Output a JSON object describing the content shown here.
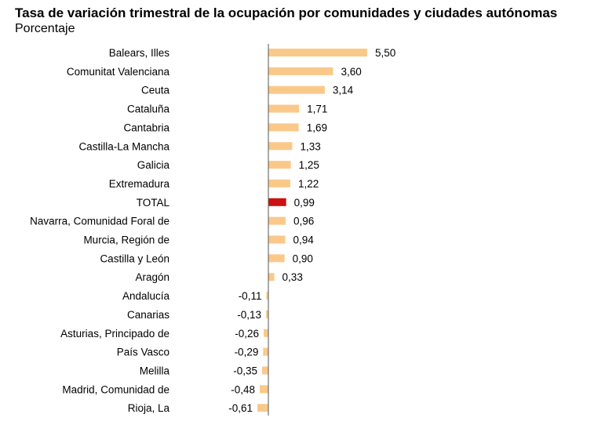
{
  "chart_data": {
    "type": "bar",
    "orientation": "horizontal",
    "title": "Tasa de variación trimestral de la ocupación por comunidades y ciudades autónomas",
    "subtitle": "Porcentaje",
    "categories": [
      "Balears, Illes",
      "Comunitat Valenciana",
      "Ceuta",
      "Cataluña",
      "Cantabria",
      "Castilla-La Mancha",
      "Galicia",
      "Extremadura",
      "TOTAL",
      "Navarra, Comunidad Foral de",
      "Murcia, Región de",
      "Castilla y León",
      "Aragón",
      "Andalucía",
      "Canarias",
      "Asturias, Principado de",
      "País Vasco",
      "Melilla",
      "Madrid, Comunidad de",
      "Rioja, La"
    ],
    "values": [
      5.5,
      3.6,
      3.14,
      1.71,
      1.69,
      1.33,
      1.25,
      1.22,
      0.99,
      0.96,
      0.94,
      0.9,
      0.33,
      -0.11,
      -0.13,
      -0.26,
      -0.29,
      -0.35,
      -0.48,
      -0.61
    ],
    "value_labels": [
      "5,50",
      "3,60",
      "3,14",
      "1,71",
      "1,69",
      "1,33",
      "1,25",
      "1,22",
      "0,99",
      "0,96",
      "0,94",
      "0,90",
      "0,33",
      "-0,11",
      "-0,13",
      "-0,26",
      "-0,29",
      "-0,35",
      "-0,48",
      "-0,61"
    ],
    "highlight_category": "TOTAL",
    "colors": {
      "bar": "#fac98a",
      "highlight": "#cc1111",
      "axis": "#555555"
    },
    "legend": "none",
    "grid": false
  }
}
